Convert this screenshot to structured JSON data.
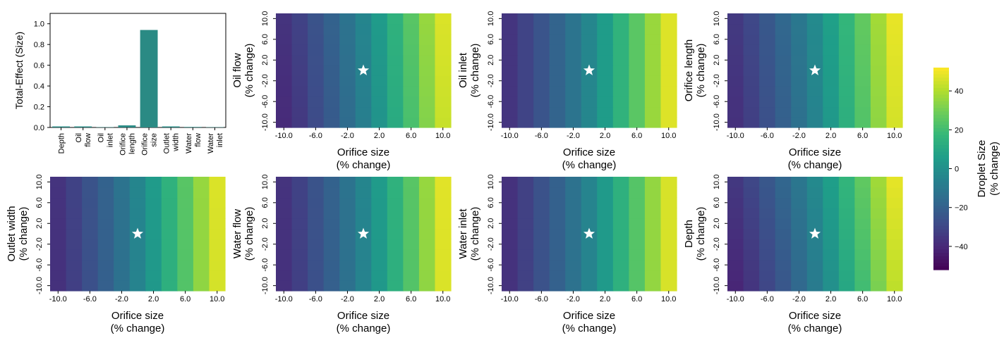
{
  "chart_data": [
    {
      "type": "bar",
      "ylabel": "Total-Effect (Size)",
      "ylim": [
        0,
        1.1
      ],
      "yticks": [
        "0.0",
        "0.2",
        "0.4",
        "0.6",
        "0.8",
        "1.0"
      ],
      "categories": [
        [
          "Depth"
        ],
        [
          "Oil",
          "flow"
        ],
        [
          "Oil",
          "inlet"
        ],
        [
          "Orifice",
          "length"
        ],
        [
          "Orifice",
          "size"
        ],
        [
          "Outlet",
          "width"
        ],
        [
          "Water",
          "flow"
        ],
        [
          "Water",
          "inlet"
        ]
      ],
      "values": [
        0.01,
        0.01,
        0.003,
        0.02,
        0.94,
        0.01,
        0.005,
        0.003
      ],
      "color": "#2a8a84"
    },
    {
      "type": "heatmap",
      "x_values": [
        -10,
        -8,
        -6,
        -4,
        -2,
        0,
        2,
        4,
        6,
        8,
        10
      ],
      "y_values": [
        -10,
        -8,
        -6,
        -4,
        -2,
        0,
        2,
        4,
        6,
        8,
        10
      ],
      "x_tick_labels": [
        "-10.0",
        "-6.0",
        "-2.0",
        "2.0",
        "6.0",
        "10.0"
      ],
      "y_tick_labels": [
        "-10.0",
        "-6.0",
        "-2.0",
        "2.0",
        "6.0",
        "10.0"
      ],
      "marker": {
        "x": 0,
        "y": 0,
        "symbol": "star",
        "color": "#ffffff"
      },
      "panels": [
        {
          "ylabel": [
            "Oil flow",
            "(% change)"
          ],
          "xlabel": [
            "Orifice size",
            "(% change)"
          ],
          "x_effect": [
            -38,
            -33,
            -27,
            -21,
            -14,
            -6,
            3,
            13,
            23,
            34,
            45
          ],
          "y_effect": [
            -1.5,
            1.5
          ]
        },
        {
          "ylabel": [
            "Oil inlet",
            "(% change)"
          ],
          "xlabel": [
            "Orifice size",
            "(% change)"
          ],
          "x_effect": [
            -36,
            -31,
            -25,
            -19,
            -12,
            -4,
            5,
            15,
            25,
            36,
            47
          ],
          "y_effect": [
            0,
            0
          ]
        },
        {
          "ylabel": [
            "Orifice length",
            "(% change)"
          ],
          "xlabel": [
            "Orifice size",
            "(% change)"
          ],
          "x_effect": [
            -36,
            -31,
            -25,
            -19,
            -12,
            -4,
            5,
            15,
            25,
            36,
            47
          ],
          "y_effect": [
            -1.5,
            1.5
          ]
        },
        {
          "ylabel": [
            "Outlet width",
            "(% change)"
          ],
          "xlabel": [
            "Orifice size",
            "(% change)"
          ],
          "x_effect": [
            -37,
            -32,
            -26,
            -20,
            -13,
            -5,
            4,
            14,
            24,
            35,
            46
          ],
          "y_effect": [
            -0.5,
            0.5
          ]
        },
        {
          "ylabel": [
            "Water flow",
            "(% change)"
          ],
          "xlabel": [
            "Orifice size",
            "(% change)"
          ],
          "x_effect": [
            -37,
            -32,
            -26,
            -20,
            -13,
            -5,
            4,
            14,
            24,
            35,
            47
          ],
          "y_effect": [
            -0.5,
            0.5
          ]
        },
        {
          "ylabel": [
            "Water inlet",
            "(% change)"
          ],
          "xlabel": [
            "Orifice size",
            "(% change)"
          ],
          "x_effect": [
            -37,
            -32,
            -26,
            -20,
            -13,
            -5,
            4,
            14,
            24,
            35,
            46
          ],
          "y_effect": [
            0,
            0
          ]
        },
        {
          "ylabel": [
            "Depth",
            "(% change)"
          ],
          "xlabel": [
            "Orifice size",
            "(% change)"
          ],
          "x_effect": [
            -38,
            -33,
            -27,
            -21,
            -14,
            -6,
            3,
            13,
            23,
            34,
            45
          ],
          "y_effect": [
            -3,
            3
          ]
        }
      ]
    },
    {
      "type": "colorbar",
      "label": [
        "Droplet Size",
        "(% change)"
      ],
      "range": [
        -52,
        52
      ],
      "ticks": [
        -40,
        -20,
        0,
        20,
        40
      ],
      "tick_labels": [
        "−40",
        "−20",
        "0",
        "20",
        "40"
      ],
      "colormap": "viridis"
    }
  ]
}
